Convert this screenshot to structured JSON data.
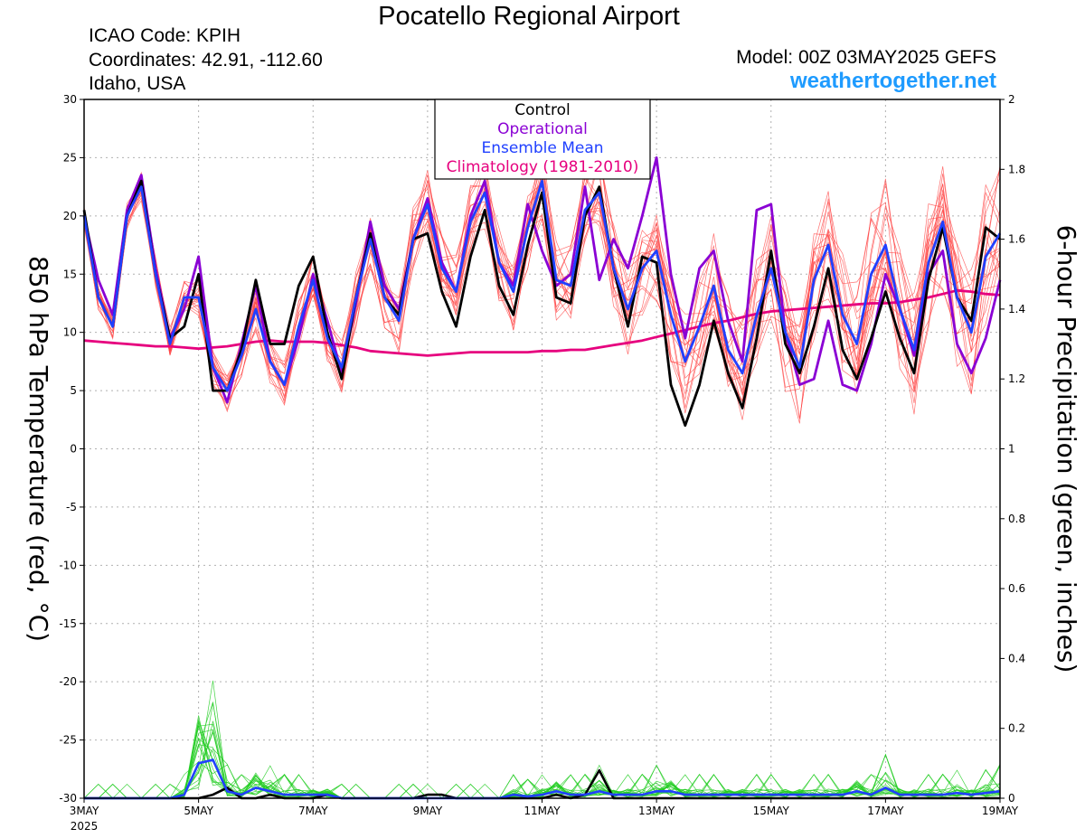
{
  "header": {
    "title": "Pocatello Regional Airport",
    "icao": "ICAO Code: KPIH",
    "coords": "Coordinates: 42.91, -112.60",
    "region": "Idaho, USA",
    "model": "Model: 00Z 03MAY2025 GEFS",
    "site": "weathertogether.net"
  },
  "chart_data": {
    "type": "line",
    "x_unit": "6-hour steps from 00Z 03MAY2025",
    "x_ticks": [
      {
        "step": 0,
        "label": "3MAY",
        "sublabel": "2025"
      },
      {
        "step": 8,
        "label": "5MAY"
      },
      {
        "step": 16,
        "label": "7MAY"
      },
      {
        "step": 24,
        "label": "9MAY"
      },
      {
        "step": 32,
        "label": "11MAY"
      },
      {
        "step": 40,
        "label": "13MAY"
      },
      {
        "step": 48,
        "label": "15MAY"
      },
      {
        "step": 56,
        "label": "17MAY"
      },
      {
        "step": 64,
        "label": "19MAY"
      }
    ],
    "xlim": [
      0,
      64
    ],
    "y_left": {
      "label": "850 hPa Temperature (red, °C)",
      "ylim": [
        -30,
        30
      ],
      "ticks": [
        "30",
        "25",
        "20",
        "15",
        "10",
        "5",
        "0",
        "-5",
        "-10",
        "-15",
        "-20",
        "-25",
        "-30"
      ]
    },
    "y_right": {
      "label": "6-hour Precipitation (green, inches)",
      "ylim": [
        0,
        2
      ],
      "ticks": [
        "2",
        "1.8",
        "1.6",
        "1.4",
        "1.2",
        "1",
        "0.8",
        "0.6",
        "0.4",
        "0.2",
        "0"
      ]
    },
    "grid": true,
    "legend": {
      "placement": "top-center",
      "entries": [
        {
          "label": "Control",
          "color": "#000000"
        },
        {
          "label": "Operational",
          "color": "#8a00d4"
        },
        {
          "label": "Ensemble Mean",
          "color": "#2040ff"
        },
        {
          "label": "Climatology (1981-2010)",
          "color": "#e6007e"
        }
      ]
    },
    "colors": {
      "members_temp": "#ff4040",
      "members_precip": "#22cc22",
      "control": "#000000",
      "operational": "#8a00d4",
      "ensemble_mean": "#2040ff",
      "climatology": "#e6007e"
    },
    "temperature_series": [
      {
        "name": "Control",
        "values": [
          20.5,
          13.0,
          10.5,
          20.0,
          23.0,
          15.0,
          9.5,
          10.5,
          15.0,
          5.0,
          5.0,
          8.5,
          14.5,
          9.0,
          9.0,
          14.0,
          16.5,
          10.0,
          6.0,
          13.0,
          18.5,
          13.0,
          11.5,
          18.0,
          18.5,
          13.5,
          10.5,
          16.5,
          20.5,
          14.0,
          11.5,
          17.5,
          22.0,
          13.0,
          12.5,
          20.0,
          22.5,
          15.5,
          10.5,
          16.5,
          16.0,
          5.5,
          2.0,
          5.5,
          11.0,
          6.5,
          3.5,
          9.5,
          17.0,
          9.0,
          6.5,
          10.5,
          15.5,
          8.5,
          6.0,
          9.5,
          13.5,
          9.5,
          6.5,
          14.5,
          19.0,
          13.0,
          11.0,
          19.0,
          18.0
        ]
      },
      {
        "name": "Operational",
        "values": [
          20.0,
          14.5,
          11.5,
          20.5,
          23.5,
          15.5,
          9.5,
          12.0,
          16.5,
          7.0,
          4.0,
          9.0,
          14.0,
          7.5,
          5.5,
          9.5,
          15.0,
          11.0,
          6.5,
          12.5,
          19.5,
          14.0,
          12.0,
          18.0,
          21.5,
          16.0,
          13.5,
          20.0,
          23.0,
          16.0,
          14.0,
          21.0,
          17.0,
          14.0,
          15.0,
          22.5,
          14.5,
          18.0,
          15.5,
          20.0,
          25.0,
          15.0,
          9.5,
          15.5,
          17.0,
          11.0,
          7.5,
          20.5,
          21.0,
          10.0,
          5.5,
          6.0,
          11.0,
          5.5,
          5.0,
          9.0,
          15.0,
          12.0,
          8.0,
          15.0,
          17.0,
          9.0,
          6.5,
          9.5,
          14.5
        ]
      },
      {
        "name": "Ensemble Mean",
        "values": [
          20.0,
          13.0,
          10.5,
          20.0,
          22.5,
          15.0,
          9.0,
          13.0,
          13.0,
          7.0,
          5.0,
          8.0,
          12.0,
          7.5,
          5.5,
          10.5,
          14.5,
          9.5,
          7.0,
          13.0,
          18.0,
          13.0,
          11.0,
          18.0,
          21.0,
          15.5,
          13.5,
          19.5,
          22.0,
          16.0,
          13.5,
          19.0,
          23.0,
          14.5,
          14.0,
          20.5,
          22.0,
          15.5,
          12.0,
          15.5,
          17.0,
          11.5,
          7.5,
          10.5,
          14.0,
          8.5,
          6.5,
          11.5,
          15.5,
          10.0,
          7.0,
          14.5,
          17.5,
          11.5,
          9.0,
          15.0,
          17.5,
          12.0,
          8.5,
          16.0,
          19.5,
          13.0,
          10.0,
          16.5,
          18.5
        ]
      },
      {
        "name": "Climatology (1981-2010)",
        "values": [
          9.3,
          9.2,
          9.1,
          9.0,
          8.9,
          8.8,
          8.8,
          8.7,
          8.6,
          8.7,
          8.8,
          9.0,
          9.2,
          9.3,
          9.2,
          9.2,
          9.2,
          9.1,
          8.9,
          8.7,
          8.4,
          8.3,
          8.2,
          8.1,
          8.0,
          8.1,
          8.2,
          8.3,
          8.3,
          8.3,
          8.3,
          8.3,
          8.4,
          8.4,
          8.5,
          8.5,
          8.7,
          8.9,
          9.1,
          9.3,
          9.6,
          9.9,
          10.2,
          10.5,
          10.8,
          11.0,
          11.3,
          11.6,
          11.8,
          11.9,
          12.0,
          12.1,
          12.2,
          12.3,
          12.4,
          12.5,
          12.5,
          12.6,
          12.8,
          13.0,
          13.3,
          13.6,
          13.5,
          13.3,
          13.2
        ]
      }
    ],
    "precipitation_series": [
      {
        "name": "Control",
        "values": [
          0,
          0,
          0,
          0,
          0,
          0,
          0,
          0,
          0,
          0.01,
          0.03,
          0,
          0,
          0.01,
          0,
          0,
          0,
          0.01,
          0,
          0,
          0,
          0,
          0,
          0,
          0.01,
          0.01,
          0,
          0,
          0,
          0,
          0,
          0,
          0,
          0.01,
          0,
          0.01,
          0.08,
          0,
          0,
          0,
          0,
          0,
          0,
          0,
          0,
          0,
          0,
          0,
          0,
          0,
          0,
          0,
          0,
          0,
          0,
          0,
          0,
          0,
          0,
          0,
          0,
          0,
          0,
          0,
          0
        ]
      },
      {
        "name": "Ensemble Mean",
        "values": [
          0,
          0,
          0,
          0,
          0,
          0,
          0,
          0.01,
          0.1,
          0.11,
          0.02,
          0.01,
          0.03,
          0.02,
          0.01,
          0.01,
          0.01,
          0.01,
          0,
          0,
          0,
          0,
          0,
          0,
          0,
          0,
          0,
          0,
          0,
          0,
          0.01,
          0.005,
          0.01,
          0.02,
          0.01,
          0.01,
          0.02,
          0.01,
          0.01,
          0.01,
          0.02,
          0.02,
          0.01,
          0.01,
          0.01,
          0.01,
          0.01,
          0.01,
          0.01,
          0.01,
          0.01,
          0.01,
          0.01,
          0.01,
          0.02,
          0.01,
          0.03,
          0.01,
          0.01,
          0.01,
          0.01,
          0.015,
          0.01,
          0.015,
          0.02
        ]
      }
    ]
  }
}
